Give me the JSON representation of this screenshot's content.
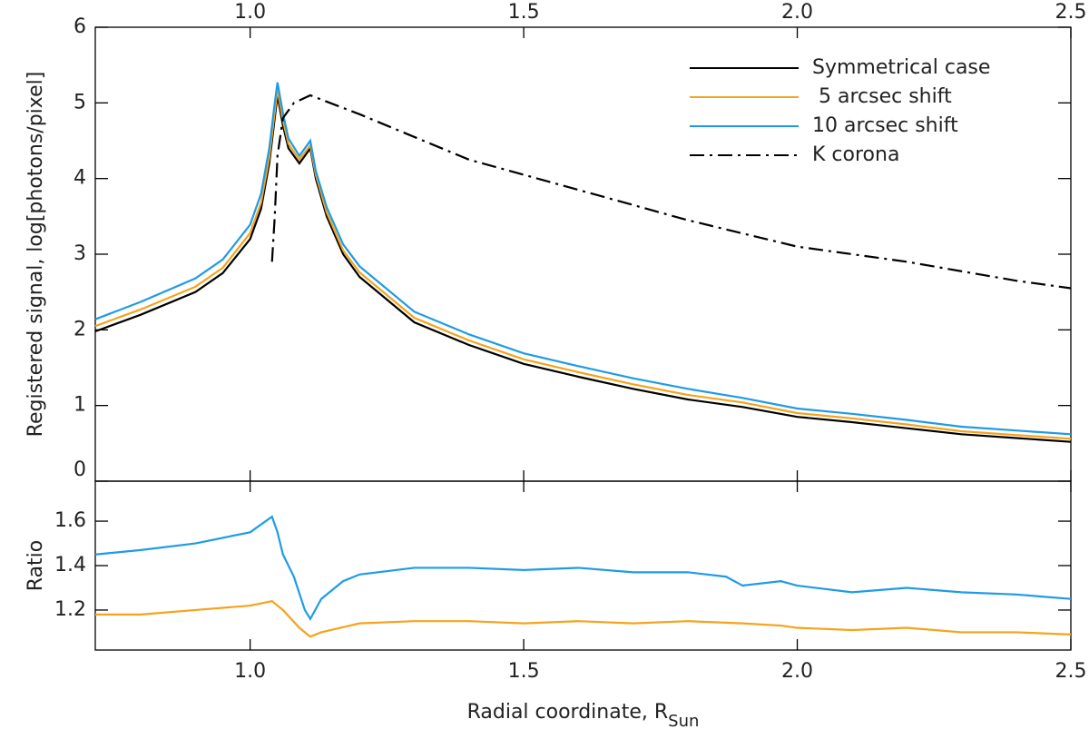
{
  "chart_data": [
    {
      "type": "line",
      "ylabel": "Registered signal, log[photons/pixel]",
      "xlim": [
        0.717,
        2.5
      ],
      "xticks": [
        {
          "value": 1,
          "label": "1.0"
        },
        1.5,
        {
          "value": 2,
          "label": "2.0"
        },
        2.5
      ],
      "ylim": [
        0,
        6
      ],
      "yticks": [
        0,
        1,
        2,
        3,
        4,
        5,
        6
      ],
      "legend": "upper right",
      "series": [
        {
          "name": "Symmetrical case",
          "color": "#000000",
          "dash": "solid",
          "x": [
            0.717,
            0.8,
            0.9,
            0.95,
            1.0,
            1.02,
            1.035,
            1.045,
            1.05,
            1.06,
            1.07,
            1.09,
            1.11,
            1.12,
            1.14,
            1.17,
            1.2,
            1.3,
            1.4,
            1.5,
            1.6,
            1.7,
            1.8,
            1.9,
            2.0,
            2.1,
            2.2,
            2.3,
            2.4,
            2.5
          ],
          "values": [
            1.98,
            2.2,
            2.5,
            2.75,
            3.2,
            3.6,
            4.2,
            4.8,
            5.1,
            4.7,
            4.4,
            4.2,
            4.4,
            4.0,
            3.5,
            3.0,
            2.7,
            2.1,
            1.8,
            1.55,
            1.38,
            1.22,
            1.08,
            0.98,
            0.85,
            0.78,
            0.7,
            0.62,
            0.57,
            0.52
          ]
        },
        {
          "name": " 5 arcsec shift",
          "color": "#f5a31b",
          "dash": "solid",
          "x": [
            0.717,
            0.8,
            0.9,
            0.95,
            1.0,
            1.02,
            1.035,
            1.045,
            1.05,
            1.06,
            1.07,
            1.09,
            1.11,
            1.12,
            1.14,
            1.17,
            1.2,
            1.3,
            1.4,
            1.5,
            1.6,
            1.7,
            1.8,
            1.9,
            2.0,
            2.1,
            2.2,
            2.3,
            2.4,
            2.5
          ],
          "values": [
            2.05,
            2.27,
            2.57,
            2.82,
            3.28,
            3.68,
            4.28,
            4.88,
            5.18,
            4.77,
            4.46,
            4.25,
            4.44,
            4.05,
            3.55,
            3.05,
            2.76,
            2.16,
            1.86,
            1.61,
            1.44,
            1.28,
            1.14,
            1.04,
            0.9,
            0.83,
            0.75,
            0.66,
            0.61,
            0.56
          ]
        },
        {
          "name": "10 arcsec shift",
          "color": "#1e9be6",
          "dash": "solid",
          "x": [
            0.717,
            0.8,
            0.9,
            0.95,
            1.0,
            1.02,
            1.035,
            1.045,
            1.05,
            1.06,
            1.07,
            1.09,
            1.11,
            1.12,
            1.14,
            1.17,
            1.2,
            1.3,
            1.4,
            1.5,
            1.6,
            1.7,
            1.8,
            1.9,
            2.0,
            2.1,
            2.2,
            2.3,
            2.4,
            2.5
          ],
          "values": [
            2.14,
            2.37,
            2.68,
            2.93,
            3.39,
            3.8,
            4.4,
            5.0,
            5.27,
            4.86,
            4.53,
            4.3,
            4.5,
            4.1,
            3.62,
            3.13,
            2.84,
            2.24,
            1.94,
            1.69,
            1.52,
            1.36,
            1.22,
            1.1,
            0.96,
            0.89,
            0.81,
            0.72,
            0.67,
            0.62
          ]
        },
        {
          "name": "K corona",
          "color": "#000000",
          "dash": "dashdot",
          "x": [
            1.04,
            1.045,
            1.05,
            1.06,
            1.08,
            1.11,
            1.2,
            1.4,
            1.6,
            1.8,
            2.0,
            2.2,
            2.4,
            2.5
          ],
          "values": [
            2.9,
            3.5,
            4.3,
            4.8,
            5.0,
            5.1,
            4.85,
            4.25,
            3.85,
            3.45,
            3.1,
            2.9,
            2.65,
            2.55
          ]
        }
      ]
    },
    {
      "type": "line",
      "ylabel": "Ratio",
      "xlabel": "Radial coordinate, R",
      "xlabel_subscript": "Sun",
      "xlim": [
        0.717,
        2.5
      ],
      "xticks": [
        {
          "value": 1,
          "label": "1.0"
        },
        1.5,
        {
          "value": 2,
          "label": "2.0"
        },
        2.5
      ],
      "ylim": [
        1.02,
        1.78
      ],
      "yticks": [
        1.2,
        1.4,
        1.6
      ],
      "series": [
        {
          "color": "#f5a31b",
          "dash": "solid",
          "x": [
            0.717,
            0.8,
            0.9,
            1.0,
            1.04,
            1.06,
            1.09,
            1.11,
            1.13,
            1.2,
            1.3,
            1.4,
            1.5,
            1.6,
            1.7,
            1.8,
            1.9,
            1.97,
            2.0,
            2.1,
            2.2,
            2.3,
            2.4,
            2.5
          ],
          "values": [
            1.18,
            1.18,
            1.2,
            1.22,
            1.24,
            1.2,
            1.12,
            1.08,
            1.1,
            1.14,
            1.15,
            1.15,
            1.14,
            1.15,
            1.14,
            1.15,
            1.14,
            1.13,
            1.12,
            1.11,
            1.12,
            1.1,
            1.1,
            1.09
          ]
        },
        {
          "color": "#1e9be6",
          "dash": "solid",
          "x": [
            0.717,
            0.8,
            0.9,
            1.0,
            1.04,
            1.05,
            1.06,
            1.08,
            1.1,
            1.11,
            1.13,
            1.17,
            1.2,
            1.3,
            1.4,
            1.5,
            1.6,
            1.7,
            1.8,
            1.87,
            1.9,
            1.97,
            2.0,
            2.1,
            2.2,
            2.3,
            2.4,
            2.5
          ],
          "values": [
            1.45,
            1.47,
            1.5,
            1.55,
            1.62,
            1.55,
            1.45,
            1.35,
            1.2,
            1.16,
            1.25,
            1.33,
            1.36,
            1.39,
            1.39,
            1.38,
            1.39,
            1.37,
            1.37,
            1.35,
            1.31,
            1.33,
            1.31,
            1.28,
            1.3,
            1.28,
            1.27,
            1.25
          ]
        }
      ]
    }
  ]
}
